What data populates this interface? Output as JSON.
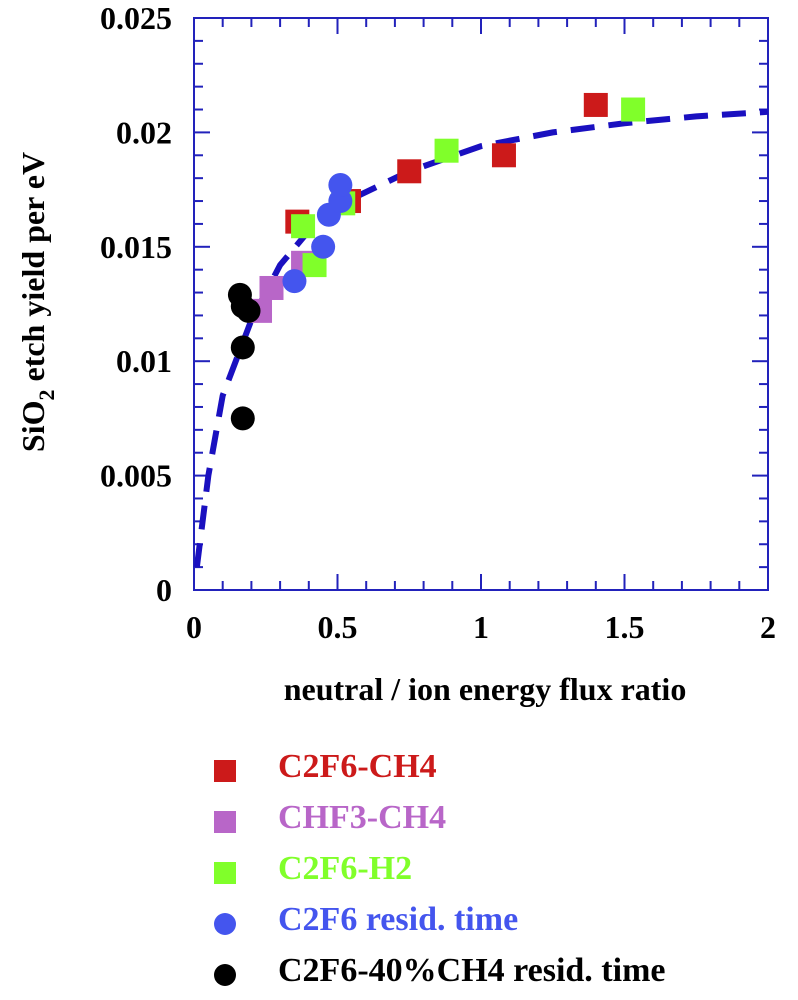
{
  "chart_data": {
    "type": "scatter",
    "xlabel": "neutral / ion energy flux ratio",
    "ylabel_main": "SiO",
    "ylabel_sub": "2",
    "ylabel_rest": " etch yield per eV",
    "xlim": [
      0,
      2
    ],
    "ylim": [
      0,
      0.025
    ],
    "xticks": [
      {
        "v": 0,
        "label": "0"
      },
      {
        "v": 0.5,
        "label": "0.5"
      },
      {
        "v": 1,
        "label": "1"
      },
      {
        "v": 1.5,
        "label": "1.5"
      },
      {
        "v": 2,
        "label": "2"
      }
    ],
    "yticks": [
      {
        "v": 0,
        "label": "0"
      },
      {
        "v": 0.005,
        "label": "0.005"
      },
      {
        "v": 0.01,
        "label": "0.01"
      },
      {
        "v": 0.015,
        "label": "0.015"
      },
      {
        "v": 0.02,
        "label": "0.02"
      },
      {
        "v": 0.025,
        "label": "0.025"
      }
    ],
    "series": [
      {
        "name": "C2F6-CH4",
        "color": "#cc1a1a",
        "marker": "square",
        "points": [
          [
            0.36,
            0.0161
          ],
          [
            0.54,
            0.017
          ],
          [
            0.75,
            0.0183
          ],
          [
            1.08,
            0.019
          ],
          [
            1.4,
            0.0212
          ]
        ]
      },
      {
        "name": "CHF3-CH4",
        "color": "#b866c8",
        "marker": "square",
        "points": [
          [
            0.23,
            0.0122
          ],
          [
            0.27,
            0.0132
          ],
          [
            0.38,
            0.0143
          ]
        ]
      },
      {
        "name": "C2F6-H2",
        "color": "#80ff2a",
        "marker": "square",
        "points": [
          [
            0.38,
            0.0159
          ],
          [
            0.42,
            0.0142
          ],
          [
            0.52,
            0.0169
          ],
          [
            0.88,
            0.0192
          ],
          [
            1.53,
            0.021
          ]
        ]
      },
      {
        "name": "C2F6 resid. time",
        "color": "#4455ee",
        "marker": "circle",
        "points": [
          [
            0.35,
            0.0135
          ],
          [
            0.45,
            0.015
          ],
          [
            0.47,
            0.0164
          ],
          [
            0.51,
            0.017
          ],
          [
            0.51,
            0.0177
          ]
        ]
      },
      {
        "name": "C2F6-40%CH4 resid. time",
        "color": "#000000",
        "marker": "circle",
        "points": [
          [
            0.16,
            0.0129
          ],
          [
            0.17,
            0.0124
          ],
          [
            0.19,
            0.0122
          ],
          [
            0.17,
            0.0106
          ],
          [
            0.17,
            0.0075
          ]
        ]
      }
    ],
    "fit": {
      "name": "fit curve",
      "color": "#1a10c0",
      "style": "dashed",
      "points": [
        [
          0.01,
          0.001
        ],
        [
          0.05,
          0.005
        ],
        [
          0.1,
          0.0085
        ],
        [
          0.2,
          0.0118
        ],
        [
          0.3,
          0.0142
        ],
        [
          0.4,
          0.0157
        ],
        [
          0.5,
          0.0168
        ],
        [
          0.75,
          0.0183
        ],
        [
          1.0,
          0.0194
        ],
        [
          1.25,
          0.02
        ],
        [
          1.5,
          0.0204
        ],
        [
          1.75,
          0.0207
        ],
        [
          2.0,
          0.0209
        ]
      ]
    },
    "legend": "bottom"
  }
}
